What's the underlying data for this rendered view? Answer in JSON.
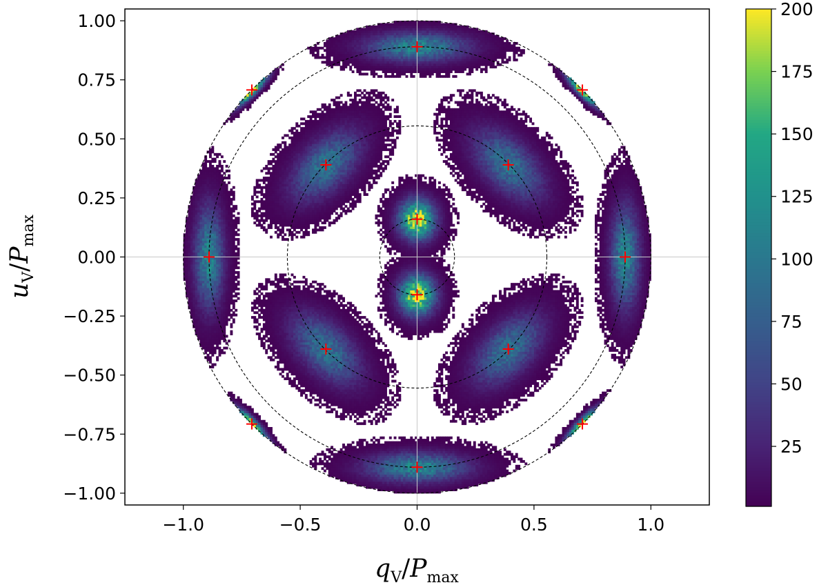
{
  "chart_data": {
    "type": "heatmap",
    "title": "",
    "xlabel_parts": {
      "main": "q",
      "sub": "V",
      "sep": "/",
      "den": "P",
      "den_sub": "max"
    },
    "ylabel_parts": {
      "main": "u",
      "sub": "V",
      "sep": "/",
      "den": "P",
      "den_sub": "max"
    },
    "xlim": [
      -1.25,
      1.25
    ],
    "ylim": [
      -1.05,
      1.05
    ],
    "x_ticks": [
      -1.0,
      -0.5,
      0.0,
      0.5,
      1.0
    ],
    "x_tick_labels": [
      "−1.0",
      "−0.5",
      "0.0",
      "0.5",
      "1.0"
    ],
    "y_ticks": [
      1.0,
      0.75,
      0.5,
      0.25,
      0.0,
      -0.25,
      -0.5,
      -0.75,
      -1.0
    ],
    "y_tick_labels": [
      "1.00",
      "0.75",
      "0.50",
      "0.25",
      "0.00",
      "−0.25",
      "−0.50",
      "−0.75",
      "−1.00"
    ],
    "grid": "zero-lines",
    "colormap": "viridis",
    "colorbar": {
      "range": [
        1,
        200
      ],
      "ticks": [
        25,
        50,
        75,
        100,
        125,
        150,
        175,
        200
      ],
      "tick_labels": [
        "25",
        "50",
        "75",
        "100",
        "125",
        "150",
        "175",
        "200"
      ]
    },
    "reference_circles_radius": [
      0.16,
      0.555,
      0.89,
      1.0
    ],
    "markers": {
      "symbol": "+",
      "color": "#ff0000",
      "points": [
        {
          "x": 0.0,
          "y": 0.16
        },
        {
          "x": 0.0,
          "y": -0.16
        },
        {
          "x": 0.39,
          "y": 0.39
        },
        {
          "x": -0.39,
          "y": 0.39
        },
        {
          "x": 0.39,
          "y": -0.39
        },
        {
          "x": -0.39,
          "y": -0.39
        },
        {
          "x": 0.0,
          "y": 0.89
        },
        {
          "x": 0.0,
          "y": -0.89
        },
        {
          "x": 0.89,
          "y": 0.0
        },
        {
          "x": -0.89,
          "y": 0.0
        },
        {
          "x": 0.707,
          "y": 0.707
        },
        {
          "x": -0.707,
          "y": 0.707
        },
        {
          "x": 0.707,
          "y": -0.707
        },
        {
          "x": -0.707,
          "y": -0.707
        }
      ]
    },
    "clusters": [
      {
        "x": 0.0,
        "y": 0.16,
        "sr": 0.055,
        "st": 0.05,
        "angle": 0,
        "peak": 205
      },
      {
        "x": 0.0,
        "y": -0.16,
        "sr": 0.055,
        "st": 0.05,
        "angle": 0,
        "peak": 205
      },
      {
        "x": 0.39,
        "y": 0.39,
        "sr": 0.065,
        "st": 0.12,
        "angle": 45,
        "peak": 95
      },
      {
        "x": -0.39,
        "y": 0.39,
        "sr": 0.065,
        "st": 0.12,
        "angle": 135,
        "peak": 95
      },
      {
        "x": 0.39,
        "y": -0.39,
        "sr": 0.065,
        "st": 0.12,
        "angle": 135,
        "peak": 95
      },
      {
        "x": -0.39,
        "y": -0.39,
        "sr": 0.065,
        "st": 0.12,
        "angle": 45,
        "peak": 95
      },
      {
        "x": 0.0,
        "y": 0.89,
        "sr": 0.04,
        "st": 0.14,
        "angle": 0,
        "peak": 115
      },
      {
        "x": 0.0,
        "y": -0.89,
        "sr": 0.04,
        "st": 0.14,
        "angle": 0,
        "peak": 115
      },
      {
        "x": 0.89,
        "y": 0.0,
        "sr": 0.04,
        "st": 0.14,
        "angle": 0,
        "peak": 115
      },
      {
        "x": -0.89,
        "y": 0.0,
        "sr": 0.04,
        "st": 0.14,
        "angle": 0,
        "peak": 115
      },
      {
        "x": 0.707,
        "y": 0.707,
        "sr": 0.014,
        "st": 0.06,
        "angle": 0,
        "peak": 200
      },
      {
        "x": -0.707,
        "y": 0.707,
        "sr": 0.014,
        "st": 0.06,
        "angle": 0,
        "peak": 200
      },
      {
        "x": 0.707,
        "y": -0.707,
        "sr": 0.014,
        "st": 0.06,
        "angle": 0,
        "peak": 200
      },
      {
        "x": -0.707,
        "y": -0.707,
        "sr": 0.014,
        "st": 0.06,
        "angle": 0,
        "peak": 200
      }
    ],
    "bin_size": 0.01,
    "min_count": 1
  }
}
